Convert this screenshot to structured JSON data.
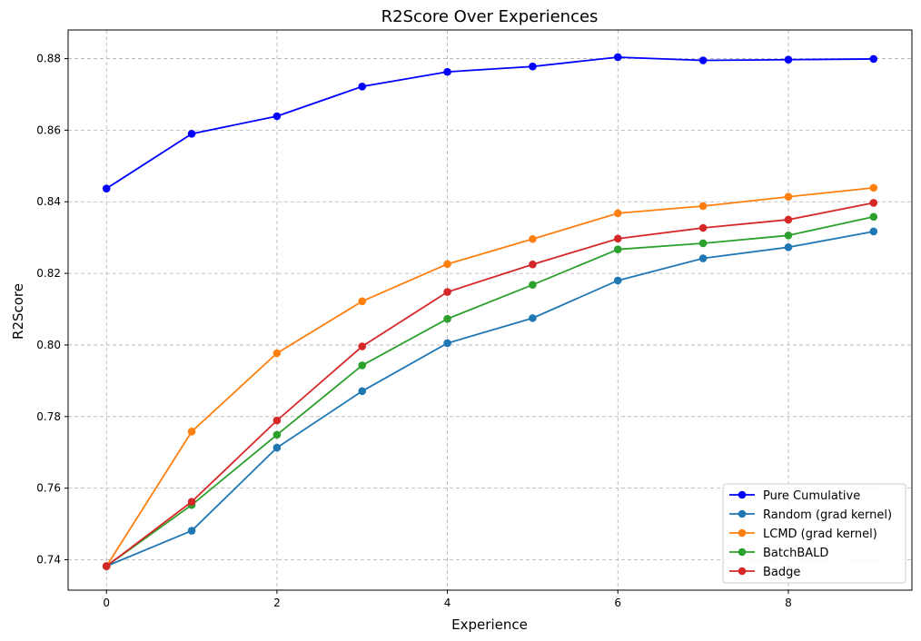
{
  "chart_data": {
    "type": "line",
    "title": "R2Score Over Experiences",
    "xlabel": "Experience",
    "ylabel": "R2Score",
    "x": [
      0,
      1,
      2,
      3,
      4,
      5,
      6,
      7,
      8,
      9
    ],
    "xlim": [
      -0.45,
      9.45
    ],
    "ylim": [
      0.7315,
      0.888
    ],
    "xticks": [
      0,
      2,
      4,
      6,
      8
    ],
    "yticks": [
      0.74,
      0.76,
      0.78,
      0.8,
      0.82,
      0.84,
      0.86,
      0.88
    ],
    "ytick_labels": [
      "0.74",
      "0.76",
      "0.78",
      "0.80",
      "0.82",
      "0.84",
      "0.86",
      "0.88"
    ],
    "grid": true,
    "legend_position": "bottom-right",
    "series": [
      {
        "name": "Pure Cumulative",
        "color": "#0000ff",
        "values": [
          0.8437,
          0.859,
          0.8639,
          0.8722,
          0.8763,
          0.8778,
          0.8804,
          0.8795,
          0.8797,
          0.8799
        ]
      },
      {
        "name": "Random (grad kernel)",
        "color": "#1f77b4",
        "values": [
          0.7382,
          0.7481,
          0.7713,
          0.7871,
          0.8005,
          0.8075,
          0.818,
          0.8242,
          0.8273,
          0.8317
        ]
      },
      {
        "name": "LCMD (grad kernel)",
        "color": "#ff7f0e",
        "values": [
          0.7382,
          0.7758,
          0.7977,
          0.8122,
          0.8226,
          0.8296,
          0.8368,
          0.8388,
          0.8414,
          0.8439
        ]
      },
      {
        "name": "BatchBALD",
        "color": "#2ca02c",
        "values": [
          0.7382,
          0.7553,
          0.7749,
          0.7943,
          0.8073,
          0.8168,
          0.8267,
          0.8284,
          0.8306,
          0.8358
        ]
      },
      {
        "name": "Badge",
        "color": "#d62728",
        "values": [
          0.7382,
          0.7562,
          0.7789,
          0.7996,
          0.8148,
          0.8225,
          0.8297,
          0.8327,
          0.835,
          0.8397
        ]
      }
    ]
  }
}
